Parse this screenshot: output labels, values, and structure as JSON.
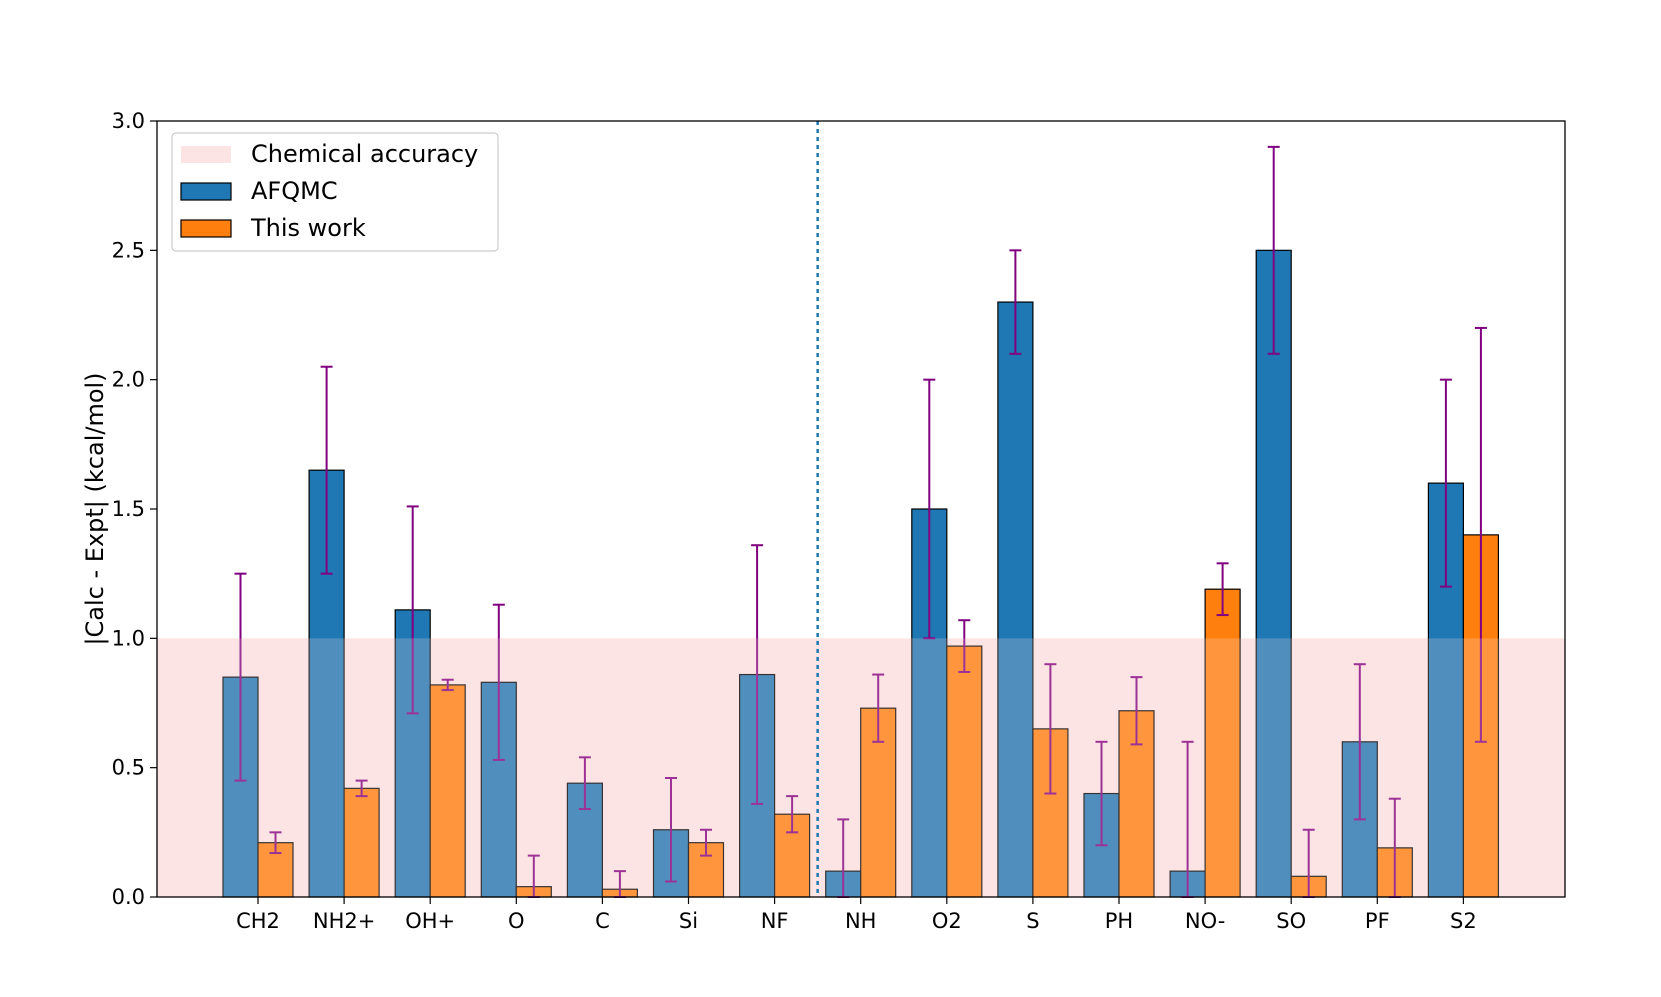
{
  "chart_data": {
    "type": "bar",
    "title": "",
    "xlabel": "",
    "ylabel": "|Calc - Expt| (kcal/mol)",
    "ylim": [
      0,
      3.0
    ],
    "yticks": [
      0.0,
      0.5,
      1.0,
      1.5,
      2.0,
      2.5,
      3.0
    ],
    "ytick_labels": [
      "0.0",
      "0.5",
      "1.0",
      "1.5",
      "2.0",
      "2.5",
      "3.0"
    ],
    "grid": false,
    "legend_position": "top-left",
    "categories": [
      "CH2",
      "NH2+",
      "OH+",
      "O",
      "C",
      "Si",
      "NF",
      "NH",
      "O2",
      "S",
      "PH",
      "NO-",
      "SO",
      "PF",
      "S2"
    ],
    "chemical_accuracy": {
      "label": "Chemical accuracy",
      "y_min": 0,
      "y_max": 1.0,
      "color": "#fde4e4"
    },
    "divider": {
      "after_category": "NF",
      "style": "dotted",
      "color": "#1f77b4"
    },
    "series": [
      {
        "name": "AFQMC",
        "color": "#1f77b4",
        "values": [
          0.85,
          1.65,
          1.11,
          0.83,
          0.44,
          0.26,
          0.86,
          0.1,
          1.5,
          2.3,
          0.4,
          0.1,
          2.5,
          0.6,
          1.6
        ],
        "errors": [
          0.4,
          0.4,
          0.4,
          0.3,
          0.1,
          0.2,
          0.5,
          0.2,
          0.5,
          0.2,
          0.2,
          0.5,
          0.4,
          0.3,
          0.4
        ]
      },
      {
        "name": "This work",
        "color": "#ff7f0e",
        "values": [
          0.21,
          0.42,
          0.82,
          0.04,
          0.03,
          0.21,
          0.32,
          0.73,
          0.97,
          0.65,
          0.72,
          1.19,
          0.08,
          0.19,
          1.4
        ],
        "errors": [
          0.04,
          0.03,
          0.02,
          0.12,
          0.07,
          0.05,
          0.07,
          0.13,
          0.1,
          0.25,
          0.13,
          0.1,
          0.18,
          0.19,
          0.8
        ]
      }
    ],
    "errorbar_color": "#800080"
  }
}
